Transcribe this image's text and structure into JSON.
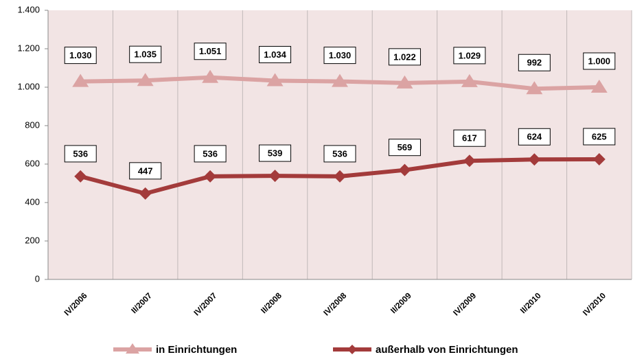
{
  "chart_data": {
    "type": "line",
    "categories": [
      "IV/2006",
      "II/2007",
      "IV/2007",
      "II/2008",
      "IV/2008",
      "II/2009",
      "IV/2009",
      "II/2010",
      "IV/2010"
    ],
    "series": [
      {
        "name": "in Einrichtungen",
        "color": "#dba3a3",
        "marker": "triangle",
        "values": [
          1030,
          1035,
          1051,
          1034,
          1030,
          1022,
          1029,
          992,
          1000
        ],
        "value_labels": [
          "1.030",
          "1.035",
          "1.051",
          "1.034",
          "1.030",
          "1.022",
          "1.029",
          "992",
          "1.000"
        ]
      },
      {
        "name": "außerhalb von Einrichtungen",
        "color": "#a33b3b",
        "marker": "diamond",
        "values": [
          536,
          447,
          536,
          539,
          536,
          569,
          617,
          624,
          625
        ]
      }
    ],
    "ylim": [
      0,
      1400
    ],
    "yticks": [
      0,
      200,
      400,
      600,
      800,
      {
        "value": 1000,
        "label": "1.000"
      },
      {
        "value": 1200,
        "label": "1.200"
      },
      {
        "value": 1400,
        "label": "1.400"
      }
    ],
    "legend": "bottom"
  }
}
